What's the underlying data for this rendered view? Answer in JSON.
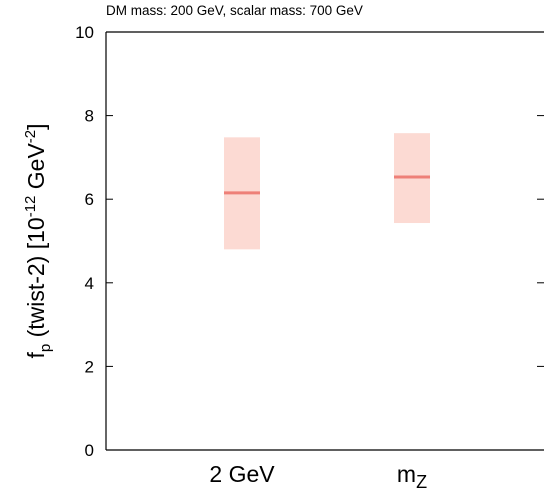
{
  "chart_data": {
    "type": "box",
    "title": "DM mass: 200 GeV,  scalar mass: 700 GeV",
    "ylabel": {
      "base": "f",
      "base_sub": "p",
      "mid": " (twist-2)  [10",
      "exp1": "-12",
      "unit": " GeV",
      "exp2": "-2",
      "close": "]"
    },
    "categories": [
      {
        "label": "2 GeV",
        "label_main": "2 GeV",
        "label_sub": ""
      },
      {
        "label": "mZ",
        "label_main": "m",
        "label_sub": "Z"
      }
    ],
    "values": [
      {
        "central": 6.15,
        "low": 4.8,
        "high": 7.48
      },
      {
        "central": 6.53,
        "low": 5.43,
        "high": 7.58
      }
    ],
    "ylim": [
      0,
      10
    ],
    "yticks": [
      "0",
      "2",
      "4",
      "6",
      "8",
      "10"
    ],
    "grid": false,
    "colors": {
      "band": "#fcdad3",
      "central": "#ee8078",
      "axis": "#000000"
    }
  }
}
